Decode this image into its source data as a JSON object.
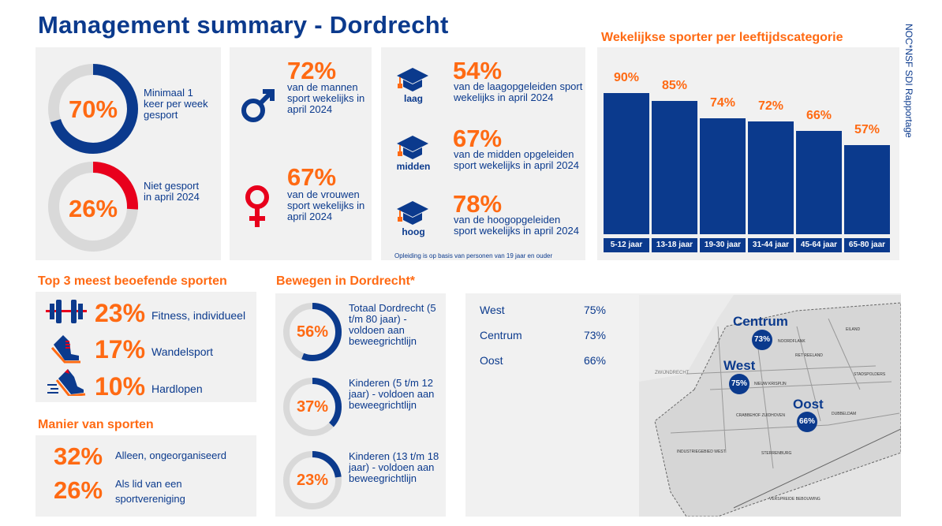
{
  "title": "Management summary - Dordrecht",
  "side_label": "NOC*NSF SDI Rapportage",
  "colors": {
    "navy": "#0b3a8d",
    "orange": "#ff6a13",
    "red": "#e8001c",
    "gray": "#d9d9d9"
  },
  "overall": [
    {
      "value": "70%",
      "fraction": 0.7,
      "color": "#0b3a8d",
      "text": "Minimaal 1 keer per week gesport"
    },
    {
      "value": "26%",
      "fraction": 0.26,
      "color": "#e8001c",
      "text": "Niet gesport in april 2024"
    }
  ],
  "gender": [
    {
      "icon": "male-icon",
      "value": "72%",
      "text": "van de mannen sport wekelijks in april 2024"
    },
    {
      "icon": "female-icon",
      "value": "67%",
      "text": "van de vrouwen sport wekelijks in april 2024"
    }
  ],
  "education": {
    "items": [
      {
        "level": "laag",
        "value": "54%",
        "text": "van de laagopgeleiden sport wekelijks in april 2024"
      },
      {
        "level": "midden",
        "value": "67%",
        "text": "van de midden opgeleiden sport wekelijks in april 2024"
      },
      {
        "level": "hoog",
        "value": "78%",
        "text": "van de hoogopgeleiden sport wekelijks in april 2024"
      }
    ],
    "footnote": "Opleiding is op basis van personen van 19 jaar en ouder"
  },
  "chart_data": {
    "type": "bar",
    "title": "Wekelijkse sporter per leeftijdscategorie",
    "categories": [
      "5-12 jaar",
      "13-18 jaar",
      "19-30 jaar",
      "31-44 jaar",
      "45-64 jaar",
      "65-80 jaar"
    ],
    "values": [
      90,
      85,
      74,
      72,
      66,
      57
    ],
    "labels": [
      "90%",
      "85%",
      "74%",
      "72%",
      "66%",
      "57%"
    ],
    "ylim": [
      0,
      100
    ],
    "xlabel": "",
    "ylabel": ""
  },
  "top_sports": {
    "title": "Top 3 meest beoefende sporten",
    "items": [
      {
        "icon": "dumbbell-icon",
        "value": "23%",
        "label": "Fitness, individueel"
      },
      {
        "icon": "walking-shoe-icon",
        "value": "17%",
        "label": "Wandelsport"
      },
      {
        "icon": "running-shoe-icon",
        "value": "10%",
        "label": "Hardlopen"
      }
    ]
  },
  "manner": {
    "title": "Manier van sporten",
    "items": [
      {
        "value": "32%",
        "label": "Alleen, ongeorganiseerd"
      },
      {
        "value": "26%",
        "label": "Als lid van een sportvereniging"
      }
    ]
  },
  "movement": {
    "title": "Bewegen in Dordrecht*",
    "items": [
      {
        "value": "56%",
        "fraction": 0.56,
        "text": "Totaal Dordrecht (5 t/m 80 jaar) - voldoen aan beweegrichtlijn"
      },
      {
        "value": "37%",
        "fraction": 0.37,
        "text": "Kinderen (5 t/m 12 jaar) - voldoen aan beweegrichtlijn"
      },
      {
        "value": "23%",
        "fraction": 0.23,
        "text": "Kinderen (13 t/m 18 jaar) - voldoen aan beweegrichtlijn"
      }
    ]
  },
  "regions": [
    {
      "name": "West",
      "value": "75%"
    },
    {
      "name": "Centrum",
      "value": "73%"
    },
    {
      "name": "Oost",
      "value": "66%"
    }
  ],
  "map_labels": {
    "swijndrecht": "ZWIJNDRECHT",
    "industrial": "INDUSTRIEGEBIED WEST",
    "sterrenburg": "STERRENBURG",
    "verspreide": "VERSPREIDE BEBOUWING",
    "stadspolders": "STADSPOLDERS",
    "dubbeldam": "DUBBELDAM",
    "crabbehof": "CRABBEHOF ZUIDHOVEN",
    "nieuw_krispijn": "NIEUW KRISPIJN",
    "reeland": "RET REELAND",
    "noordflank": "NOORDFLANK",
    "eiland": "EILAND"
  }
}
